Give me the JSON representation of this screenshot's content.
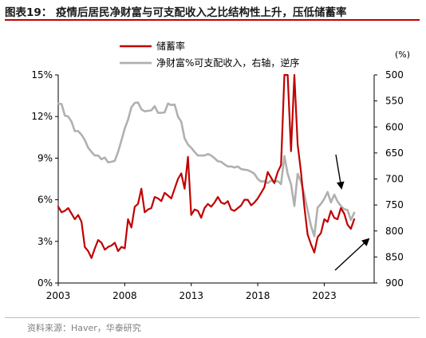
{
  "header": {
    "title": "图表19： 疫情后居民净财富与可支配收入之比结构性上升，压低储蓄率"
  },
  "footer": {
    "source": "资料来源：Haver，华泰研究"
  },
  "chart_data": {
    "type": "line",
    "title": "图表19： 疫情后居民净财富与可支配收入之比结构性上升，压低储蓄率",
    "xlabel": "",
    "ylabel_left": "",
    "ylabel_right": "(%)",
    "x_ticks": [
      "2003",
      "2008",
      "2013",
      "2018",
      "2023"
    ],
    "y_left_ticks": [
      "0%",
      "3%",
      "6%",
      "9%",
      "12%",
      "15%"
    ],
    "y_right_ticks": [
      "500",
      "550",
      "600",
      "650",
      "700",
      "750",
      "800",
      "850",
      "900"
    ],
    "x_range": [
      2003.0,
      2026.75
    ],
    "y_left_range": [
      0,
      15
    ],
    "y_right_range": [
      900,
      500
    ],
    "y_right_inverted": true,
    "legend_placement": "top-left",
    "grid": false,
    "colors": {
      "savings": "#c00000",
      "wealth": "#b0b0b0",
      "arrow": "#000000",
      "axis": "#000000"
    },
    "series": [
      {
        "name": "储蓄率",
        "axis": "left",
        "color": "#c00000",
        "x": [
          2003.0,
          2003.25,
          2003.5,
          2003.75,
          2004.0,
          2004.25,
          2004.5,
          2004.75,
          2005.0,
          2005.25,
          2005.5,
          2005.75,
          2006.0,
          2006.25,
          2006.5,
          2006.75,
          2007.0,
          2007.25,
          2007.5,
          2007.75,
          2008.0,
          2008.25,
          2008.5,
          2008.75,
          2009.0,
          2009.25,
          2009.5,
          2009.75,
          2010.0,
          2010.25,
          2010.5,
          2010.75,
          2011.0,
          2011.25,
          2011.5,
          2011.75,
          2012.0,
          2012.25,
          2012.5,
          2012.75,
          2013.0,
          2013.25,
          2013.5,
          2013.75,
          2014.0,
          2014.25,
          2014.5,
          2014.75,
          2015.0,
          2015.25,
          2015.5,
          2015.75,
          2016.0,
          2016.25,
          2016.5,
          2016.75,
          2017.0,
          2017.25,
          2017.5,
          2017.75,
          2018.0,
          2018.25,
          2018.5,
          2018.75,
          2019.0,
          2019.25,
          2019.5,
          2019.75,
          2020.0,
          2020.25,
          2020.5,
          2020.75,
          2021.0,
          2021.25,
          2021.5,
          2021.75,
          2022.0,
          2022.25,
          2022.5,
          2022.75,
          2023.0,
          2023.25,
          2023.5,
          2023.75,
          2024.0,
          2024.25,
          2024.5,
          2024.75,
          2025.0,
          2025.25
        ],
        "values": [
          5.5,
          5.1,
          5.2,
          5.4,
          5.0,
          4.6,
          4.9,
          4.4,
          2.6,
          2.3,
          1.8,
          2.5,
          3.1,
          2.9,
          2.4,
          2.6,
          2.7,
          2.9,
          2.3,
          2.6,
          2.5,
          4.6,
          4.0,
          5.5,
          5.7,
          6.8,
          5.1,
          5.3,
          5.4,
          6.2,
          6.1,
          5.9,
          6.5,
          6.3,
          6.1,
          6.8,
          7.5,
          7.9,
          6.8,
          9.1,
          4.9,
          5.3,
          5.2,
          4.7,
          5.4,
          5.7,
          5.5,
          5.8,
          6.2,
          5.8,
          5.7,
          5.9,
          5.3,
          5.2,
          5.4,
          5.6,
          6.0,
          6.0,
          5.6,
          5.8,
          6.1,
          6.5,
          6.9,
          8.0,
          7.6,
          7.2,
          8.0,
          8.5,
          15.0,
          15.0,
          9.5,
          15.0,
          10.0,
          8.0,
          5.5,
          3.5,
          2.8,
          2.2,
          3.3,
          3.6,
          4.6,
          4.4,
          5.2,
          4.7,
          4.6,
          5.4,
          5.0,
          4.2,
          3.9,
          4.6
        ]
      },
      {
        "name": "净财富%可支配收入，右轴，逆序",
        "axis": "right",
        "color": "#b0b0b0",
        "x": [
          2003.0,
          2003.25,
          2003.5,
          2003.75,
          2004.0,
          2004.25,
          2004.5,
          2004.75,
          2005.0,
          2005.25,
          2005.5,
          2005.75,
          2006.0,
          2006.25,
          2006.5,
          2006.75,
          2007.0,
          2007.25,
          2007.5,
          2007.75,
          2008.0,
          2008.25,
          2008.5,
          2008.75,
          2009.0,
          2009.25,
          2009.5,
          2009.75,
          2010.0,
          2010.25,
          2010.5,
          2010.75,
          2011.0,
          2011.25,
          2011.5,
          2011.75,
          2012.0,
          2012.25,
          2012.5,
          2012.75,
          2013.0,
          2013.25,
          2013.5,
          2013.75,
          2014.0,
          2014.25,
          2014.5,
          2014.75,
          2015.0,
          2015.25,
          2015.5,
          2015.75,
          2016.0,
          2016.25,
          2016.5,
          2016.75,
          2017.0,
          2017.25,
          2017.5,
          2017.75,
          2018.0,
          2018.25,
          2018.5,
          2018.75,
          2019.0,
          2019.25,
          2019.5,
          2019.75,
          2020.0,
          2020.25,
          2020.5,
          2020.75,
          2021.0,
          2021.25,
          2021.5,
          2021.75,
          2022.0,
          2022.25,
          2022.5,
          2022.75,
          2023.0,
          2023.25,
          2023.5,
          2023.75,
          2024.0,
          2024.25,
          2024.5,
          2024.75,
          2025.0,
          2025.25
        ],
        "values": [
          555,
          556,
          578,
          580,
          590,
          608,
          608,
          615,
          625,
          640,
          648,
          655,
          655,
          662,
          659,
          668,
          667,
          665,
          648,
          626,
          603,
          586,
          562,
          554,
          553,
          566,
          570,
          569,
          568,
          560,
          573,
          573,
          572,
          555,
          558,
          557,
          580,
          590,
          622,
          634,
          640,
          648,
          655,
          655,
          655,
          652,
          655,
          660,
          666,
          667,
          672,
          676,
          676,
          678,
          676,
          681,
          682,
          683,
          686,
          690,
          700,
          705,
          704,
          708,
          703,
          706,
          704,
          710,
          656,
          690,
          710,
          752,
          690,
          705,
          730,
          760,
          790,
          810,
          755,
          748,
          738,
          725,
          745,
          730,
          743,
          752,
          758,
          760,
          779,
          765
        ]
      }
    ]
  }
}
